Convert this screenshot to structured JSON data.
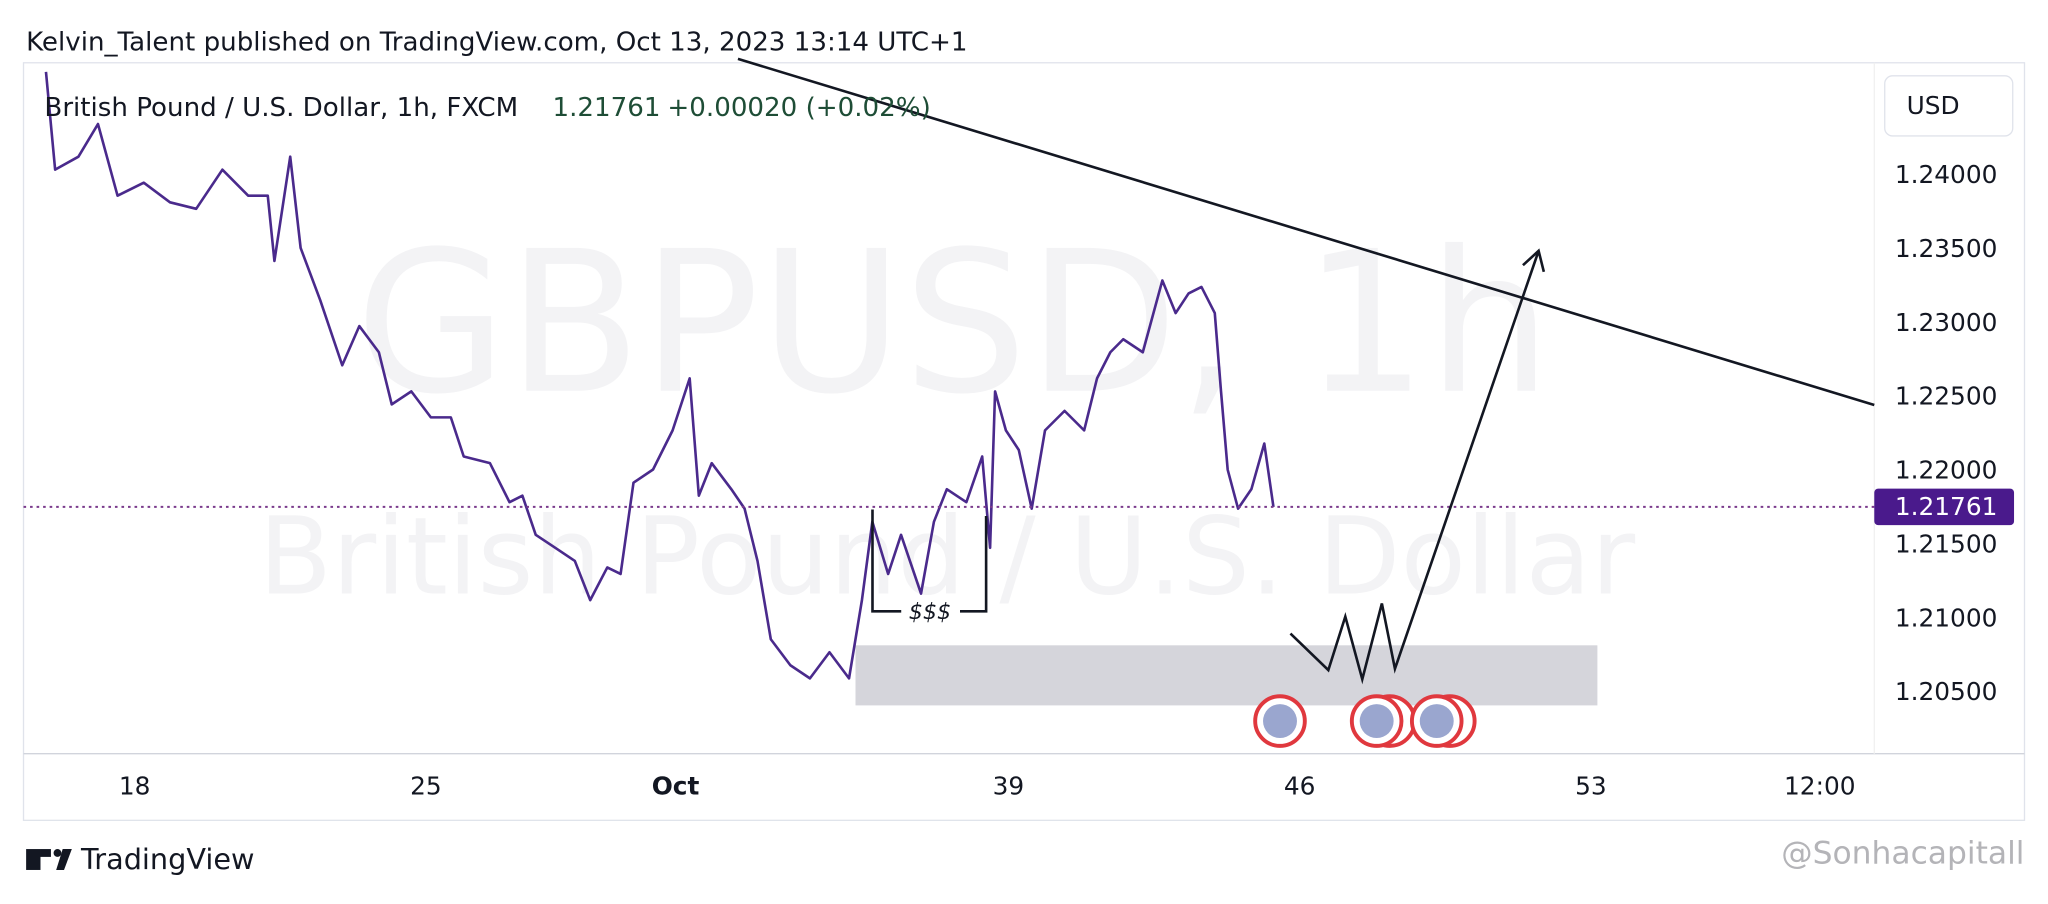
{
  "header": "Kelvin_Talent published on TradingView.com, Oct 13, 2023 13:14 UTC+1",
  "chart_data": {
    "type": "line",
    "title": "British Pound / U.S. Dollar, 1h, FXCM",
    "last_price": 1.21761,
    "change": "+0.00020 (+0.02%)",
    "watermark": "GBPUSD, 1h",
    "watermark_subtitle": "British Pound / U.S. Dollar",
    "currency_button": "USD",
    "annotation": "$$$",
    "color": "#4a2a8c",
    "grid": false,
    "x": [
      15.87,
      16.09,
      16.65,
      17.12,
      17.59,
      18.22,
      18.85,
      19.48,
      20.11,
      20.73,
      21.2,
      21.36,
      21.74,
      21.99,
      22.46,
      22.99,
      23.4,
      23.87,
      24.18,
      24.65,
      25.12,
      25.6,
      25.91,
      26.54,
      27.01,
      27.32,
      27.64,
      28.11,
      28.58,
      28.95,
      29.36,
      29.68,
      29.99,
      30.46,
      30.93,
      31.34,
      31.56,
      31.87,
      32.34,
      32.66,
      32.97,
      33.29,
      33.76,
      34.23,
      34.7,
      35.17,
      35.48,
      35.73,
      36.11,
      36.42,
      36.9,
      37.21,
      37.52,
      37.99,
      38.37,
      38.56,
      38.68,
      38.94,
      39.25,
      39.56,
      39.88,
      40.35,
      40.82,
      41.13,
      41.45,
      41.76,
      42.23,
      42.7,
      43.02,
      43.33,
      43.64,
      43.96,
      44.11,
      44.27,
      44.52,
      44.84,
      45.15,
      45.37
    ],
    "values": [
      1.24706,
      1.24044,
      1.24132,
      1.24353,
      1.23868,
      1.23956,
      1.23823,
      1.23779,
      1.24044,
      1.23868,
      1.23868,
      1.23426,
      1.24132,
      1.23514,
      1.23161,
      1.2272,
      1.22985,
      1.22808,
      1.22455,
      1.22543,
      1.22367,
      1.22367,
      1.22102,
      1.22057,
      1.21793,
      1.21837,
      1.21572,
      1.21484,
      1.21395,
      1.2113,
      1.21351,
      1.21307,
      1.21925,
      1.22014,
      1.22279,
      1.22631,
      1.21837,
      1.22057,
      1.21881,
      1.21749,
      1.21395,
      1.20865,
      1.20689,
      1.206,
      1.20777,
      1.206,
      1.2113,
      1.2166,
      1.21307,
      1.21572,
      1.21174,
      1.2166,
      1.21881,
      1.21793,
      1.22102,
      1.21484,
      1.22543,
      1.22279,
      1.22146,
      1.21749,
      1.22279,
      1.22411,
      1.22279,
      1.22631,
      1.22808,
      1.22896,
      1.22808,
      1.23294,
      1.23073,
      1.23206,
      1.2325,
      1.23073,
      1.22543,
      1.22013,
      1.21749,
      1.21881,
      1.2219,
      1.21761
    ],
    "xlim": [
      15.33,
      59.81
    ],
    "xticks": [
      18,
      25,
      {
        "value": 31,
        "label": "Oct"
      },
      39,
      46,
      53,
      {
        "value": 58.5,
        "label": "12:00"
      }
    ],
    "ylim": [
      1.2009,
      1.2475
    ],
    "yticks": [
      {
        "value": 1.24,
        "label": "1.24000"
      },
      {
        "value": 1.235,
        "label": "1.23500"
      },
      {
        "value": 1.23,
        "label": "1.23000"
      },
      {
        "value": 1.225,
        "label": "1.22500"
      },
      {
        "value": 1.22,
        "label": "1.22000"
      },
      {
        "value": 1.215,
        "label": "1.21500"
      },
      {
        "value": 1.21,
        "label": "1.21000"
      },
      {
        "value": 1.205,
        "label": "1.20500"
      }
    ]
  },
  "footer": {
    "brand": "TradingView",
    "credit": "@Sonhacapitall"
  }
}
